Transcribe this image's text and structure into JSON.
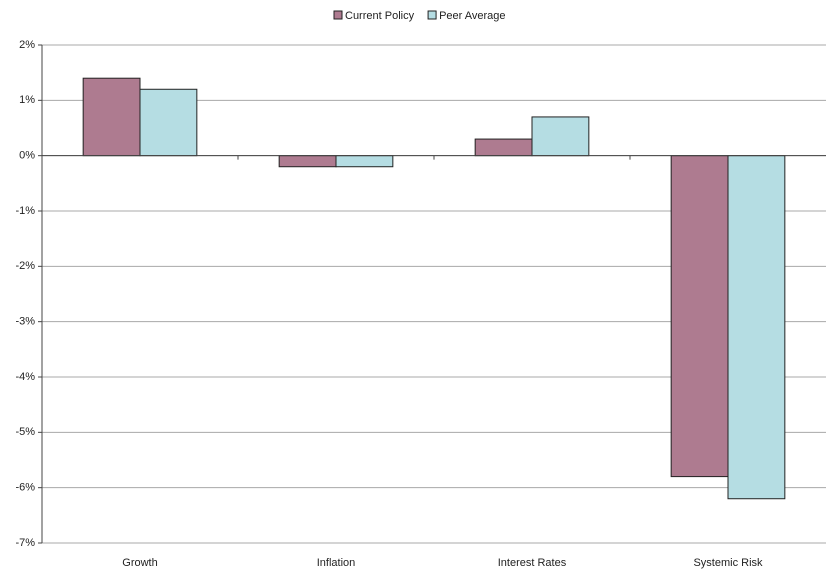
{
  "chart_data": {
    "type": "bar",
    "categories": [
      "Growth",
      "Inflation",
      "Interest Rates",
      "Systemic Risk"
    ],
    "series": [
      {
        "name": "Current Policy",
        "color": "#ae7b90",
        "values": [
          1.4,
          -0.2,
          0.3,
          -5.8
        ]
      },
      {
        "name": "Peer Average",
        "color": "#b5dde3",
        "values": [
          1.2,
          -0.2,
          0.7,
          -6.2
        ]
      }
    ],
    "ylim": [
      -7,
      2
    ],
    "yticks": [
      {
        "value": 2,
        "label": "2%"
      },
      {
        "value": 1,
        "label": "1%"
      },
      {
        "value": 0,
        "label": "0%"
      },
      {
        "value": -1,
        "label": "-1%"
      },
      {
        "value": -2,
        "label": "-2%"
      },
      {
        "value": -3,
        "label": "-3%"
      },
      {
        "value": -4,
        "label": "-4%"
      },
      {
        "value": -5,
        "label": "-5%"
      },
      {
        "value": -6,
        "label": "-6%"
      },
      {
        "value": -7,
        "label": "-7%"
      }
    ],
    "grid": true,
    "legend": "top"
  }
}
